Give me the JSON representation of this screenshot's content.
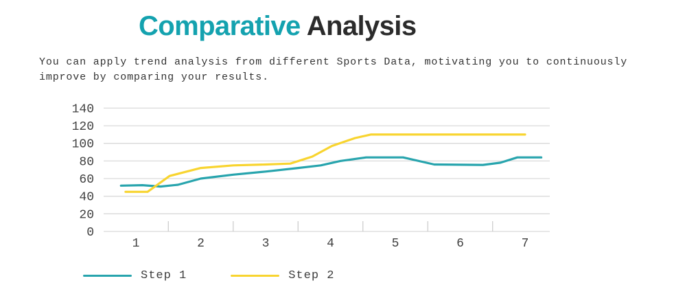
{
  "title": {
    "highlight": "Comparative ",
    "rest": "Analysis"
  },
  "subtitle": {
    "lines": [
      "You can apply trend analysis from different Sports Data, motivating you to continuously",
      "improve by comparing your results."
    ]
  },
  "colors": {
    "title_highlight": "#14a2af",
    "title_dark": "#2b2b2b",
    "series1": "#27a4ad",
    "series2": "#f8d42f",
    "gridline": "#d9d9d9",
    "axis_tick_mark": "#c9c9c9",
    "tick_text": "#404040",
    "subtitle_text": "#333333"
  },
  "chart_data": {
    "type": "line",
    "title": "",
    "xlabel": "",
    "ylabel": "",
    "x_labels": [
      "1",
      "2",
      "3",
      "4",
      "5",
      "6",
      "7"
    ],
    "y_ticks": [
      0,
      20,
      40,
      60,
      80,
      100,
      120,
      140
    ],
    "ylim": [
      0,
      140
    ],
    "grid": "horizontal",
    "legend_position": "bottom-left",
    "series": [
      {
        "name": "Step 1",
        "color": "#27a4ad",
        "values_at_x": [
          52,
          60,
          68,
          77,
          84,
          76,
          84
        ],
        "points": [
          [
            0.77,
            52
          ],
          [
            1.1,
            52.5
          ],
          [
            1.38,
            51
          ],
          [
            1.65,
            53
          ],
          [
            2,
            60
          ],
          [
            2.5,
            64.5
          ],
          [
            3,
            68
          ],
          [
            3.5,
            72
          ],
          [
            3.85,
            75
          ],
          [
            4.15,
            80
          ],
          [
            4.55,
            84
          ],
          [
            5.12,
            84
          ],
          [
            5.6,
            76
          ],
          [
            6.35,
            75.5
          ],
          [
            6.62,
            78
          ],
          [
            6.88,
            84
          ],
          [
            7.25,
            84
          ]
        ]
      },
      {
        "name": "Step 2",
        "color": "#f8d42f",
        "values_at_x": [
          45,
          72,
          76,
          97,
          110,
          110,
          110
        ],
        "points": [
          [
            0.84,
            45
          ],
          [
            1.18,
            45
          ],
          [
            1.52,
            63
          ],
          [
            2,
            72
          ],
          [
            2.5,
            75
          ],
          [
            3,
            76
          ],
          [
            3.38,
            77
          ],
          [
            3.72,
            85
          ],
          [
            4.02,
            97
          ],
          [
            4.38,
            106
          ],
          [
            4.62,
            110
          ],
          [
            7,
            110
          ]
        ]
      }
    ]
  }
}
